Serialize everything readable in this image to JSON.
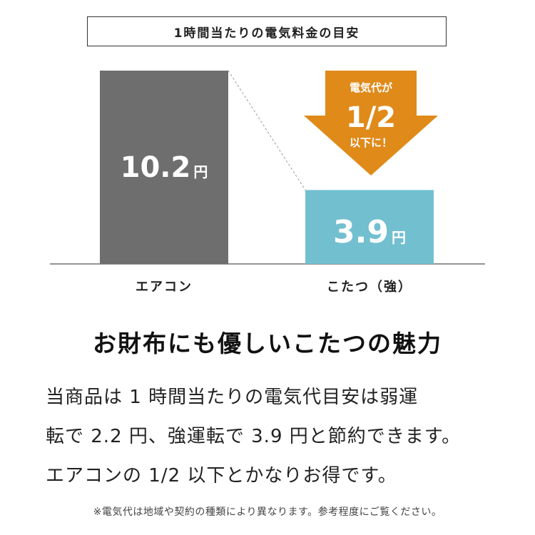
{
  "chart_data": {
    "type": "bar",
    "title": "1時間当たりの電気料金の目安",
    "categories": [
      "エアコン",
      "こたつ（強）"
    ],
    "values": [
      10.2,
      3.9
    ],
    "unit": "円",
    "value_labels": [
      "10.2",
      "3.9"
    ],
    "colors": [
      "#6e6e6e",
      "#72bfd0"
    ],
    "ylim": [
      0,
      10.2
    ],
    "annotation": {
      "line1": "電気代が",
      "line2": "1/2",
      "line3": "以下に！",
      "color": "#e08a1a"
    }
  },
  "headline": "お財布にも優しいこたつの魅力",
  "body": [
    "当商品は 1 時間当たりの電気代目安は弱運",
    "転で 2.2 円、強運転で 3.9 円と節約できます。",
    "エアコンの 1/2 以下とかなりお得です。"
  ],
  "note": "※電気代は地域や契約の種類により異なります。参考程度にご覧ください。"
}
